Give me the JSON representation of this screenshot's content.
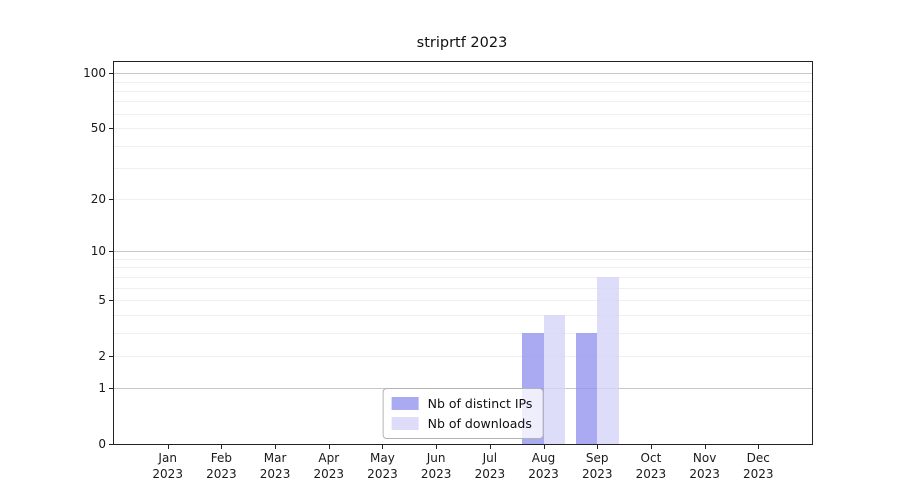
{
  "chart_data": {
    "type": "bar",
    "title": "striprtf 2023",
    "categories": [
      "Jan 2023",
      "Feb 2023",
      "Mar 2023",
      "Apr 2023",
      "May 2023",
      "Jun 2023",
      "Jul 2023",
      "Aug 2023",
      "Sep 2023",
      "Oct 2023",
      "Nov 2023",
      "Dec 2023"
    ],
    "x_tick_line1": [
      "Jan",
      "Feb",
      "Mar",
      "Apr",
      "May",
      "Jun",
      "Jul",
      "Aug",
      "Sep",
      "Oct",
      "Nov",
      "Dec"
    ],
    "x_tick_line2": "2023",
    "series": [
      {
        "name": "Nb of distinct IPs",
        "color": "#9595ef",
        "alpha": 0.8,
        "values": [
          0,
          0,
          0,
          0,
          0,
          0,
          0,
          3,
          3,
          0,
          0,
          0
        ]
      },
      {
        "name": "Nb of downloads",
        "color": "#d5d5f9",
        "alpha": 0.8,
        "values": [
          0,
          0,
          0,
          0,
          0,
          0,
          0,
          4,
          7,
          0,
          0,
          0
        ]
      }
    ],
    "y_scale": "log1p",
    "ylim": [
      0,
      115
    ],
    "y_tick_values": [
      0,
      1,
      2,
      5,
      10,
      20,
      50,
      100
    ],
    "y_major_grid": [
      1,
      10,
      100
    ],
    "y_minor_grid": [
      2,
      3,
      4,
      5,
      6,
      7,
      8,
      9,
      20,
      30,
      40,
      50,
      60,
      70,
      80,
      90
    ],
    "grid": true,
    "legend_position": "lower center"
  },
  "colors": {
    "background": "#ffffff",
    "spine": "#222222",
    "grid_major": "#c8c8c8",
    "grid_minor": "#efefef",
    "text": "#1a1a1a",
    "legend_border": "#b3b3b3"
  }
}
